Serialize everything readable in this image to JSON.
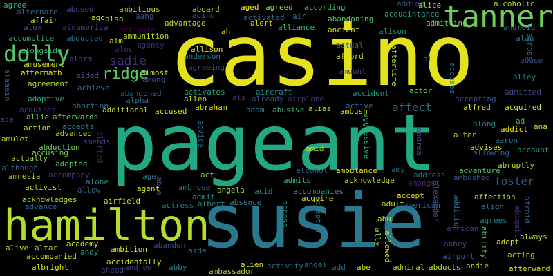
{
  "words": [
    {
      "text": "casino",
      "color": "#e3e21c"
    },
    {
      "text": "pageant",
      "color": "#23a884"
    },
    {
      "text": "susie",
      "color": "#2a788e"
    },
    {
      "text": "hamilton",
      "color": "#b5de2b"
    },
    {
      "text": "tanner",
      "color": "#6ece58"
    },
    {
      "text": "dolly",
      "color": "#52c569"
    },
    {
      "text": "ridge",
      "color": "#5ec962"
    },
    {
      "text": "sadie",
      "color": "#472d7b"
    },
    {
      "text": "foster",
      "color": "#3b528b"
    },
    {
      "text": "affect",
      "color": "#2c728e"
    },
    {
      "text": "agree",
      "color": "#35b779"
    },
    {
      "text": "alternate",
      "color": "#31688e"
    },
    {
      "text": "abused",
      "color": "#3e4989"
    },
    {
      "text": "ambitious",
      "color": "#b8de29"
    },
    {
      "text": "aboard",
      "color": "#90d743"
    },
    {
      "text": "aged",
      "color": "#fde725"
    },
    {
      "text": "agreed",
      "color": "#9fda3a"
    },
    {
      "text": "according",
      "color": "#4ac16d"
    },
    {
      "text": "adding",
      "color": "#3e4a89"
    },
    {
      "text": "alice",
      "color": "#a2da37"
    },
    {
      "text": "alcoholic",
      "color": "#b5de2b"
    },
    {
      "text": "ago",
      "color": "#c8e020"
    },
    {
      "text": "also",
      "color": "#b2dd2d"
    },
    {
      "text": "aang",
      "color": "#3e4a89"
    },
    {
      "text": "aging",
      "color": "#38588c"
    },
    {
      "text": "activated",
      "color": "#31688e"
    },
    {
      "text": "air",
      "color": "#2d708e"
    },
    {
      "text": "abandoning",
      "color": "#56c667"
    },
    {
      "text": "acquaintance",
      "color": "#20a386"
    },
    {
      "text": "alex",
      "color": "#3b528b"
    },
    {
      "text": "affair",
      "color": "#cae11f"
    },
    {
      "text": "aid",
      "color": "#482878"
    },
    {
      "text": "america",
      "color": "#3e4989"
    },
    {
      "text": "activate",
      "color": "#440154"
    },
    {
      "text": "advantage",
      "color": "#bddf26"
    },
    {
      "text": "alert",
      "color": "#d2e21b"
    },
    {
      "text": "alliance",
      "color": "#3dbc74"
    },
    {
      "text": "admitting",
      "color": "#70cf57"
    },
    {
      "text": "android",
      "color": "#2a778e"
    },
    {
      "text": "accomplice",
      "color": "#29af7f"
    },
    {
      "text": "abducted",
      "color": "#2e6d8e"
    },
    {
      "text": "aim",
      "color": "#cde11d"
    },
    {
      "text": "ammunition",
      "color": "#c0df25"
    },
    {
      "text": "ah",
      "color": "#d0e11c"
    },
    {
      "text": "ancient",
      "color": "#d8e219"
    },
    {
      "text": "alison",
      "color": "#21918c"
    },
    {
      "text": "alan",
      "color": "#2a768e"
    },
    {
      "text": "across",
      "color": "#306a8e"
    },
    {
      "text": "alongside",
      "color": "#3bbb75"
    },
    {
      "text": "alec",
      "color": "#482677"
    },
    {
      "text": "agency",
      "color": "#472c7a"
    },
    {
      "text": "allison",
      "color": "#e7e419"
    },
    {
      "text": "actual",
      "color": "#35608d"
    },
    {
      "text": "anderson",
      "color": "#287d8e"
    },
    {
      "text": "afford",
      "color": "#cde11d"
    },
    {
      "text": "al",
      "color": "#2c728e"
    },
    {
      "text": "alarm",
      "color": "#3f4889"
    },
    {
      "text": "amusement",
      "color": "#d8e219"
    },
    {
      "text": "aided",
      "color": "#3e4a89"
    },
    {
      "text": "almost",
      "color": "#c2df23"
    },
    {
      "text": "agreeing",
      "color": "#433e85"
    },
    {
      "text": "amount",
      "color": "#433e85"
    },
    {
      "text": "afterlife",
      "color": "#addc30"
    },
    {
      "text": "abuse",
      "color": "#3a548c"
    },
    {
      "text": "alley",
      "color": "#24878e"
    },
    {
      "text": "aftermath",
      "color": "#dde318"
    },
    {
      "text": "among",
      "color": "#3e4989"
    },
    {
      "text": "agreement",
      "color": "#addc30"
    },
    {
      "text": "achieve",
      "color": "#2a788e"
    },
    {
      "text": "aircraft",
      "color": "#21918c"
    },
    {
      "text": "accident",
      "color": "#1f9e89"
    },
    {
      "text": "actor",
      "color": "#5cc863"
    },
    {
      "text": "accuses",
      "color": "#2c718e"
    },
    {
      "text": "admitted",
      "color": "#3f4788"
    },
    {
      "text": "alamein",
      "color": "#375b8d"
    },
    {
      "text": "abandoned",
      "color": "#2d708e"
    },
    {
      "text": "activates",
      "color": "#21a585"
    },
    {
      "text": "adoptive",
      "color": "#29af7f"
    },
    {
      "text": "alpha",
      "color": "#2d708e"
    },
    {
      "text": "allen",
      "color": "#d5e21a"
    },
    {
      "text": "ali",
      "color": "#443983"
    },
    {
      "text": "already",
      "color": "#3b528b"
    },
    {
      "text": "airplane",
      "color": "#46337e"
    },
    {
      "text": "accepting",
      "color": "#3a548c"
    },
    {
      "text": "abortion",
      "color": "#2d708e"
    },
    {
      "text": "abraham",
      "color": "#ece51b"
    },
    {
      "text": "adam",
      "color": "#25848e"
    },
    {
      "text": "abusive",
      "color": "#35b779"
    },
    {
      "text": "alias",
      "color": "#b2dd2d"
    },
    {
      "text": "active",
      "color": "#2c728e"
    },
    {
      "text": "alfred",
      "color": "#e5e419"
    },
    {
      "text": "acquired",
      "color": "#c8e020"
    },
    {
      "text": "ace",
      "color": "#3e4a89"
    },
    {
      "text": "acquires",
      "color": "#443983"
    },
    {
      "text": "additional",
      "color": "#c0df25"
    },
    {
      "text": "accused",
      "color": "#d2e21b"
    },
    {
      "text": "ambush",
      "color": "#d8e219"
    },
    {
      "text": "allie",
      "color": "#6ece58"
    },
    {
      "text": "afterwards",
      "color": "#65cb5e"
    },
    {
      "text": "along",
      "color": "#25848e"
    },
    {
      "text": "ad",
      "color": "#3aba76"
    },
    {
      "text": "addict",
      "color": "#e2e418"
    },
    {
      "text": "ana",
      "color": "#cde11d"
    },
    {
      "text": "action",
      "color": "#bddf26"
    },
    {
      "text": "accepts",
      "color": "#26828e"
    },
    {
      "text": "aggressive",
      "color": "#29af7f"
    },
    {
      "text": "amulet",
      "color": "#c2df23"
    },
    {
      "text": "advanced",
      "color": "#b2dd2d"
    },
    {
      "text": "alter",
      "color": "#b2dd2d"
    },
    {
      "text": "aaron",
      "color": "#2a788e"
    },
    {
      "text": "amends",
      "color": "#433e85"
    },
    {
      "text": "advice",
      "color": "#2e6e8e"
    },
    {
      "text": "abduction",
      "color": "#6ece58"
    },
    {
      "text": "amid",
      "color": "#addc30"
    },
    {
      "text": "advises",
      "color": "#dae319"
    },
    {
      "text": "account",
      "color": "#21918c"
    },
    {
      "text": "actually",
      "color": "#9bd93c"
    },
    {
      "text": "accusing",
      "color": "#7ad151"
    },
    {
      "text": "alerted",
      "color": "#482475"
    },
    {
      "text": "andrea",
      "color": "#3e4a89"
    },
    {
      "text": "allowing",
      "color": "#33638d"
    },
    {
      "text": "although",
      "color": "#35608d"
    },
    {
      "text": "adopted",
      "color": "#52c569"
    },
    {
      "text": "alcohol",
      "color": "#35608d"
    },
    {
      "text": "ambulance",
      "color": "#e7e419"
    },
    {
      "text": "amy",
      "color": "#30698e"
    },
    {
      "text": "abruptly",
      "color": "#bddf26"
    },
    {
      "text": "amnesia",
      "color": "#b2dd2d"
    },
    {
      "text": "accompany",
      "color": "#443983"
    },
    {
      "text": "age",
      "color": "#2a788e"
    },
    {
      "text": "address",
      "color": "#2d708e"
    },
    {
      "text": "adventure",
      "color": "#5ec962"
    },
    {
      "text": "alone",
      "color": "#25848e"
    },
    {
      "text": "act",
      "color": "#7ad151"
    },
    {
      "text": "admits",
      "color": "#35b779"
    },
    {
      "text": "acknowledge",
      "color": "#addc30"
    },
    {
      "text": "amongst",
      "color": "#482878"
    },
    {
      "text": "ambushed",
      "color": "#3b528b"
    },
    {
      "text": "activist",
      "color": "#b2dd2d"
    },
    {
      "text": "allow",
      "color": "#34618d"
    },
    {
      "text": "able",
      "color": "#3e4a89"
    },
    {
      "text": "agent",
      "color": "#cde11d"
    },
    {
      "text": "ambrose",
      "color": "#287d8e"
    },
    {
      "text": "angela",
      "color": "#8bd646"
    },
    {
      "text": "acid",
      "color": "#21918c"
    },
    {
      "text": "accompanies",
      "color": "#20a386"
    },
    {
      "text": "acknowledges",
      "color": "#addc30"
    },
    {
      "text": "admit",
      "color": "#20928c"
    },
    {
      "text": "acquire",
      "color": "#dde318"
    },
    {
      "text": "accept",
      "color": "#e5e419"
    },
    {
      "text": "affection",
      "color": "#addc30"
    },
    {
      "text": "align",
      "color": "#2a788e"
    },
    {
      "text": "abigail",
      "color": "#46307e"
    },
    {
      "text": "afraid",
      "color": "#34618d"
    },
    {
      "text": "advance",
      "color": "#2d708e"
    },
    {
      "text": "airfield",
      "color": "#bddf26"
    },
    {
      "text": "actress",
      "color": "#2a788e"
    },
    {
      "text": "albert",
      "color": "#20928c"
    },
    {
      "text": "absence",
      "color": "#238a8d"
    },
    {
      "text": "access",
      "color": "#20a386"
    },
    {
      "text": "accepted",
      "color": "#2a788e"
    },
    {
      "text": "adult",
      "color": "#bddf26"
    },
    {
      "text": "american",
      "color": "#33638d"
    },
    {
      "text": "alexander",
      "color": "#3b528b"
    },
    {
      "text": "addition",
      "color": "#2e6e8e"
    },
    {
      "text": "agrees",
      "color": "#26828e"
    },
    {
      "text": "abu",
      "color": "#dae319"
    },
    {
      "text": "ally",
      "color": "#8bd646"
    },
    {
      "text": "african",
      "color": "#443983"
    },
    {
      "text": "ability",
      "color": "#52c569"
    },
    {
      "text": "always",
      "color": "#b8de29"
    },
    {
      "text": "academy",
      "color": "#cde11d"
    },
    {
      "text": "abandon",
      "color": "#3f4889"
    },
    {
      "text": "allowed",
      "color": "#c2df23"
    },
    {
      "text": "adopt",
      "color": "#e2e418"
    },
    {
      "text": "alive",
      "color": "#c0df25"
    },
    {
      "text": "altar",
      "color": "#b2dd2d"
    },
    {
      "text": "andy",
      "color": "#20a386"
    },
    {
      "text": "ambition",
      "color": "#dde318"
    },
    {
      "text": "aide",
      "color": "#2a788e"
    },
    {
      "text": "abbey",
      "color": "#404688"
    },
    {
      "text": "accompanied",
      "color": "#d2e21b"
    },
    {
      "text": "accidentally",
      "color": "#cde11d"
    },
    {
      "text": "airport",
      "color": "#35608d"
    },
    {
      "text": "acting",
      "color": "#b2dd2d"
    },
    {
      "text": "albright",
      "color": "#dde318"
    },
    {
      "text": "ahead",
      "color": "#3e4a89"
    },
    {
      "text": "andrew",
      "color": "#443983"
    },
    {
      "text": "abby",
      "color": "#26828e"
    },
    {
      "text": "ambassador",
      "color": "#addc30"
    },
    {
      "text": "alien",
      "color": "#dae319"
    },
    {
      "text": "activity",
      "color": "#2c728e"
    },
    {
      "text": "angel",
      "color": "#2c718e"
    },
    {
      "text": "add",
      "color": "#2d708e"
    },
    {
      "text": "abe",
      "color": "#c8e020"
    },
    {
      "text": "admiral",
      "color": "#bddf26"
    },
    {
      "text": "abducts",
      "color": "#b2dd2d"
    },
    {
      "text": "andie",
      "color": "#bddf26"
    },
    {
      "text": "afterward",
      "color": "#d5e21a"
    }
  ]
}
